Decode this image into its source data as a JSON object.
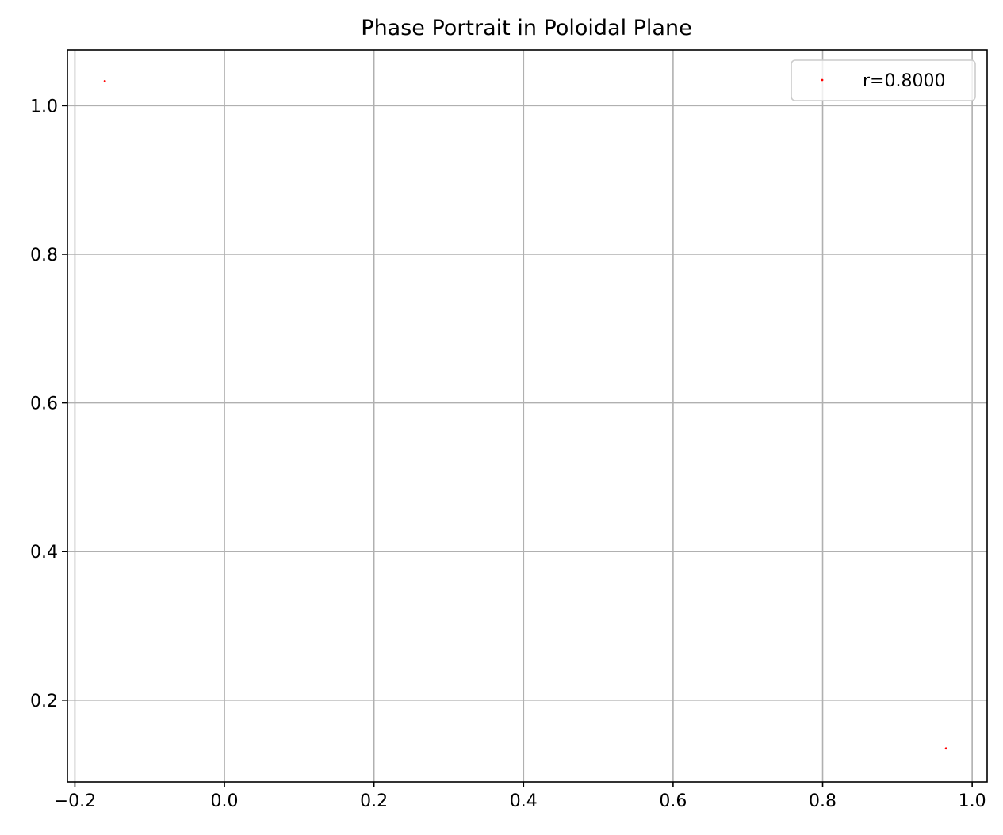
{
  "chart_data": {
    "type": "scatter",
    "title": "Phase Portrait in Poloidal Plane",
    "xlabel": "",
    "ylabel": "",
    "xlim": [
      -0.21,
      1.02
    ],
    "ylim": [
      0.09,
      1.075
    ],
    "xticks": [
      -0.2,
      0.0,
      0.2,
      0.4,
      0.6,
      0.8,
      1.0
    ],
    "xtick_labels": [
      "−0.2",
      "0.0",
      "0.2",
      "0.4",
      "0.6",
      "0.8",
      "1.0"
    ],
    "yticks": [
      0.2,
      0.4,
      0.6,
      0.8,
      1.0
    ],
    "ytick_labels": [
      "0.2",
      "0.4",
      "0.6",
      "0.8",
      "1.0"
    ],
    "grid": true,
    "legend_position": "top-right",
    "series": [
      {
        "name": "r=0.8000",
        "color": "#ff0000",
        "marker": "point",
        "points": [
          {
            "x": -0.16,
            "y": 1.033
          },
          {
            "x": 0.965,
            "y": 0.135
          }
        ]
      }
    ]
  }
}
